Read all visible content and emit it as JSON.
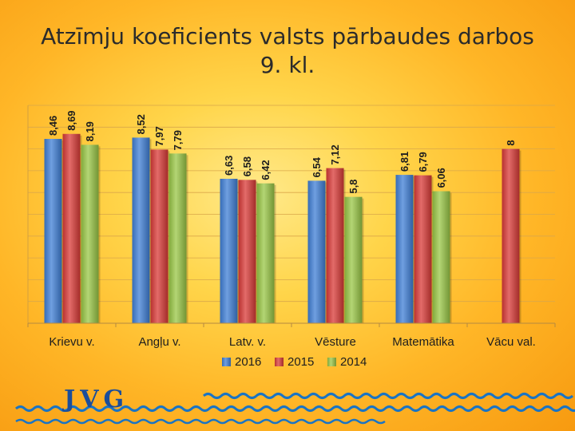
{
  "slide": {
    "title_line1": "Atzīmju koeficients valsts pārbaudes darbos",
    "title_line2": "9. kl."
  },
  "footer": {
    "logo_text": "JVG"
  },
  "colors": {
    "series_2016": "#3f7fd6",
    "series_2015": "#d93a37",
    "series_2014": "#99c745",
    "wave": "#1a74c4"
  },
  "chart_data": {
    "type": "bar",
    "categories": [
      "Krievu v.",
      "Angļu v.",
      "Latv. v.",
      "Vēsture",
      "Matemātika",
      "Vācu val."
    ],
    "series": [
      {
        "name": "2016",
        "values": [
          8.46,
          8.52,
          6.63,
          6.54,
          6.81,
          null
        ],
        "labels": [
          "8,46",
          "8,52",
          "6,63",
          "6,54",
          "6,81",
          ""
        ]
      },
      {
        "name": "2015",
        "values": [
          8.69,
          7.97,
          6.58,
          7.12,
          6.79,
          8
        ],
        "labels": [
          "8,69",
          "7,97",
          "6,58",
          "7,12",
          "6,79",
          "8"
        ]
      },
      {
        "name": "2014",
        "values": [
          8.19,
          7.79,
          6.42,
          5.8,
          6.06,
          null
        ],
        "labels": [
          "8,19",
          "7,79",
          "6,42",
          "5,8",
          "6,06",
          ""
        ]
      }
    ],
    "legend_position": "bottom",
    "grid": true
  }
}
